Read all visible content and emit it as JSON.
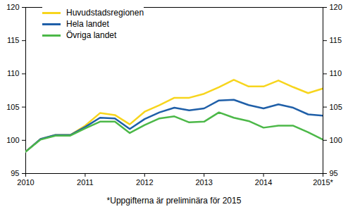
{
  "chart_data": {
    "type": "line",
    "caption": "*Uppgifterna är preliminära för 2015",
    "x": [
      2010,
      2010.25,
      2010.5,
      2010.75,
      2011,
      2011.25,
      2011.5,
      2011.75,
      2012,
      2012.25,
      2012.5,
      2012.75,
      2013,
      2013.25,
      2013.5,
      2013.75,
      2014,
      2014.25,
      2014.5,
      2014.75,
      2015
    ],
    "series": [
      {
        "name": "Huvudstadsregionen",
        "color": "#f7d51d",
        "values": [
          98.3,
          100.2,
          100.8,
          100.8,
          102.2,
          104.1,
          103.8,
          102.4,
          104.3,
          105.3,
          106.4,
          106.4,
          107.0,
          108.0,
          109.1,
          108.1,
          108.1,
          109.0,
          108.0,
          107.1,
          107.8
        ]
      },
      {
        "name": "Hela landet",
        "color": "#1f5fa8",
        "values": [
          98.3,
          100.2,
          100.8,
          100.8,
          102.0,
          103.4,
          103.3,
          101.7,
          103.2,
          104.2,
          104.9,
          104.5,
          104.8,
          106.0,
          106.1,
          105.3,
          104.8,
          105.4,
          104.9,
          103.9,
          103.7
        ]
      },
      {
        "name": "Övriga landet",
        "color": "#4cb848",
        "values": [
          98.3,
          100.1,
          100.7,
          100.7,
          101.8,
          102.8,
          102.8,
          101.1,
          102.3,
          103.3,
          103.6,
          102.7,
          102.8,
          104.2,
          103.4,
          102.9,
          101.9,
          102.2,
          102.2,
          101.2,
          100.1
        ]
      }
    ],
    "xlim": [
      2010,
      2015
    ],
    "xticks": [
      2010,
      2011,
      2012,
      2013,
      2014,
      {
        "value": 2015,
        "label": "2015*"
      }
    ],
    "ylim": [
      95,
      120
    ],
    "yticks": [
      95,
      100,
      105,
      110,
      115,
      120
    ],
    "grid": false,
    "legend": "top-left"
  }
}
